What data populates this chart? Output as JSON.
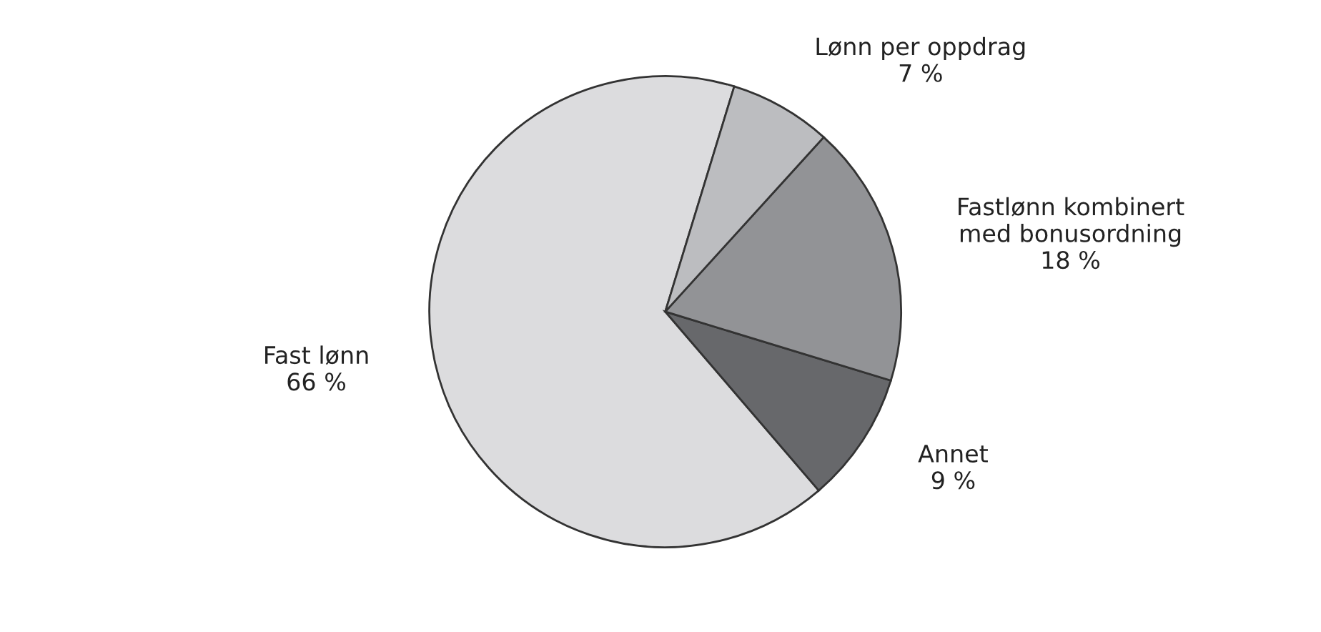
{
  "chart_data": {
    "type": "pie",
    "categories": [
      "Fast lønn",
      "Annet",
      "Fastlønn kombinert\nmed bonusordning",
      "Lønn per oppdrag"
    ],
    "values": [
      66,
      9,
      18,
      7
    ],
    "value_labels": [
      "66 %",
      "9 %",
      "18 %",
      "7 %"
    ],
    "colors": [
      "#dcdcde",
      "#67686b",
      "#929396",
      "#bcbdc0"
    ]
  }
}
